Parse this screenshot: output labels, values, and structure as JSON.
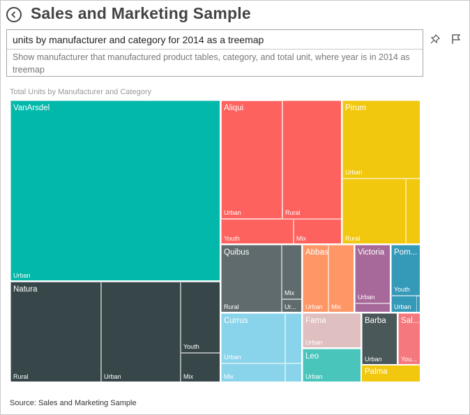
{
  "header": {
    "title": "Sales and Marketing Sample",
    "back_icon": "back-arrow-circle-icon"
  },
  "qa": {
    "query": "units by manufacturer and category for 2014 as a treemap",
    "suggestion": "Show manufacturer that manufactured product tables, category, and total unit, where year is in 2014 as treemap",
    "pin_icon": "pin-icon",
    "flag_icon": "flag-icon"
  },
  "colors": {
    "VanArsdel": "#01B8AA",
    "Natura": "#374649",
    "Aliqui": "#FD625E",
    "Pirum": "#F2C80F",
    "Quibus": "#5F6B6D",
    "Abbas": "#FE9666",
    "Victoria": "#A66999",
    "Pomum": "#3599B8",
    "Currus": "#8AD4EB",
    "Fama": "#DFBFBF",
    "Barba": "#4A5859",
    "Salvus": "#F5787E",
    "Leo": "#4AC5BB",
    "Palma": "#F2C80F"
  },
  "chart_data": {
    "type": "treemap",
    "title": "Total Units by Manufacturer and Category",
    "manufacturers": [
      {
        "name": "VanArsdel",
        "label": "VanArsdel",
        "categories": [
          {
            "name": "Urban",
            "label": "Urban"
          }
        ]
      },
      {
        "name": "Natura",
        "label": "Natura",
        "categories": [
          {
            "name": "Rural",
            "label": "Rural"
          },
          {
            "name": "Urban",
            "label": "Urban"
          },
          {
            "name": "Youth",
            "label": "Youth"
          },
          {
            "name": "Mix",
            "label": "Mix"
          }
        ]
      },
      {
        "name": "Aliqui",
        "label": "Aliqui",
        "categories": [
          {
            "name": "Urban",
            "label": "Urban"
          },
          {
            "name": "Rural",
            "label": "Rural"
          },
          {
            "name": "Youth",
            "label": "Youth"
          },
          {
            "name": "Mix",
            "label": "Mix"
          }
        ]
      },
      {
        "name": "Pirum",
        "label": "Pirum",
        "categories": [
          {
            "name": "Urban",
            "label": "Urban"
          },
          {
            "name": "Rural",
            "label": "Rural"
          }
        ]
      },
      {
        "name": "Quibus",
        "label": "Quibus",
        "categories": [
          {
            "name": "Rural",
            "label": "Rural"
          },
          {
            "name": "Mix",
            "label": "Mix"
          },
          {
            "name": "Urban",
            "label": "Ur..."
          }
        ]
      },
      {
        "name": "Abbas",
        "label": "Abbas",
        "categories": [
          {
            "name": "Urban",
            "label": "Urban"
          },
          {
            "name": "Mix",
            "label": "Mix"
          }
        ]
      },
      {
        "name": "Victoria",
        "label": "Victoria",
        "categories": [
          {
            "name": "Urban",
            "label": "Urban"
          }
        ]
      },
      {
        "name": "Pomum",
        "label": "Pom...",
        "categories": [
          {
            "name": "Youth",
            "label": "Youth"
          },
          {
            "name": "Urban",
            "label": "Urban"
          }
        ]
      },
      {
        "name": "Currus",
        "label": "Currus",
        "categories": [
          {
            "name": "Urban",
            "label": "Urban"
          },
          {
            "name": "Mix",
            "label": "Mix"
          }
        ]
      },
      {
        "name": "Fama",
        "label": "Fama",
        "categories": [
          {
            "name": "Urban",
            "label": "Urban"
          }
        ]
      },
      {
        "name": "Barba",
        "label": "Barba",
        "categories": [
          {
            "name": "Urban",
            "label": "Urban"
          }
        ]
      },
      {
        "name": "Salvus",
        "label": "Sal...",
        "categories": [
          {
            "name": "Youth",
            "label": "You..."
          }
        ]
      },
      {
        "name": "Leo",
        "label": "Leo",
        "categories": [
          {
            "name": "Urban",
            "label": "Urban"
          }
        ]
      },
      {
        "name": "Palma",
        "label": "Palma",
        "categories": []
      }
    ]
  },
  "footer": {
    "source": "Source: Sales and Marketing Sample"
  }
}
